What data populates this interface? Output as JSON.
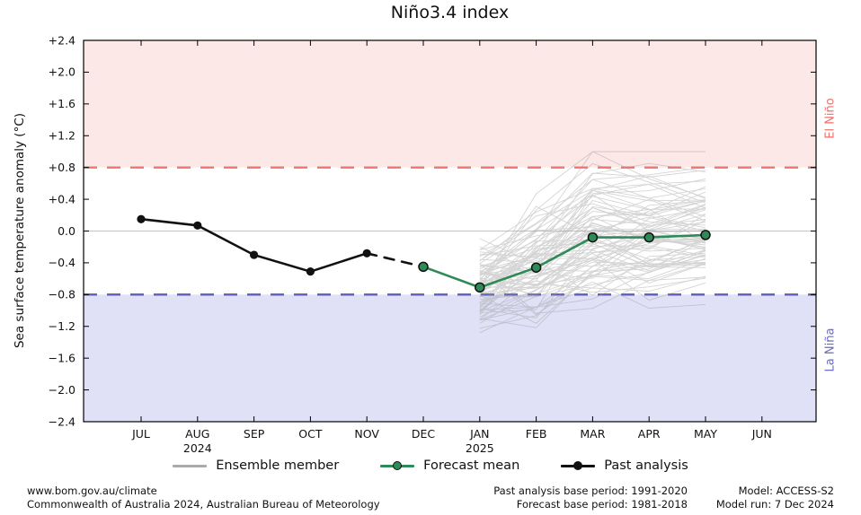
{
  "title": "Niño3.4 index",
  "y_axis_label": "Sea surface temperature anomaly (°C)",
  "region_labels": {
    "el_nino": "El Niño",
    "la_nina": "La Niña"
  },
  "legend": {
    "ensemble_label": "Ensemble member",
    "forecast_label": "Forecast mean",
    "past_label": "Past analysis"
  },
  "footer": {
    "left_line1": "www.bom.gov.au/climate",
    "left_line2": "Commonwealth of Australia 2024, Australian Bureau of Meteorology",
    "center_line1": "Past analysis base period: 1991-2020",
    "center_line2": "Forecast base period: 1981-2018",
    "right_line1": "Model: ACCESS-S2",
    "right_line2": "Model run: 7 Dec 2024"
  },
  "colors": {
    "el_nino_region": "#fce9e7",
    "la_nina_region": "#e0e0f6",
    "el_nino_line": "#f4726d",
    "la_nina_line": "#5c5cbe",
    "el_nino_text": "#ee6f6a",
    "la_nina_text": "#6a6ac4",
    "zero_line": "#c4c4c4",
    "past_line": "#111111",
    "forecast_line": "#2e8b57",
    "ensemble_line": "#9a9a9a",
    "axis": "#000000"
  },
  "chart_data": {
    "type": "line",
    "title": "Niño3.4 index",
    "ylabel": "Sea surface temperature anomaly (°C)",
    "ylim": [
      -2.4,
      2.4
    ],
    "y_tick_step": 0.4,
    "y_tick_labels": [
      "+2.4",
      "+2.0",
      "+1.6",
      "+1.2",
      "+0.8",
      "+0.4",
      "0.0",
      "−0.4",
      "−0.8",
      "−1.2",
      "−1.6",
      "−2.0",
      "−2.4"
    ],
    "y_tick_values": [
      2.4,
      2.0,
      1.6,
      1.2,
      0.8,
      0.4,
      0.0,
      -0.4,
      -0.8,
      -1.2,
      -1.6,
      -2.0,
      -2.4
    ],
    "x_tick_labels": [
      {
        "label": "JUL",
        "year": ""
      },
      {
        "label": "AUG",
        "year": "2024"
      },
      {
        "label": "SEP",
        "year": ""
      },
      {
        "label": "OCT",
        "year": ""
      },
      {
        "label": "NOV",
        "year": ""
      },
      {
        "label": "DEC",
        "year": ""
      },
      {
        "label": "JAN",
        "year": "2025"
      },
      {
        "label": "FEB",
        "year": ""
      },
      {
        "label": "MAR",
        "year": ""
      },
      {
        "label": "APR",
        "year": ""
      },
      {
        "label": "MAY",
        "year": ""
      },
      {
        "label": "JUN",
        "year": ""
      }
    ],
    "thresholds": {
      "el_nino": 0.8,
      "la_nina": -0.8,
      "zero": 0.0
    },
    "legend_position": "bottom",
    "grid": "zero-line-only",
    "series": [
      {
        "name": "Past analysis",
        "style": "solid",
        "month_index": [
          0,
          1,
          2,
          3,
          4
        ],
        "months": [
          "JUL",
          "AUG",
          "SEP",
          "OCT",
          "NOV"
        ],
        "values": [
          0.15,
          0.07,
          -0.3,
          -0.51,
          -0.28
        ]
      },
      {
        "name": "Past analysis (dashed link)",
        "style": "dashed",
        "month_index": [
          4,
          5
        ],
        "months": [
          "NOV",
          "DEC"
        ],
        "values": [
          -0.28,
          -0.45
        ]
      },
      {
        "name": "Forecast mean",
        "style": "solid",
        "month_index": [
          5,
          6,
          7,
          8,
          9,
          10
        ],
        "months": [
          "DEC",
          "JAN",
          "FEB",
          "MAR",
          "APR",
          "MAY"
        ],
        "values": [
          -0.45,
          -0.71,
          -0.46,
          -0.08,
          -0.08,
          -0.05
        ]
      }
    ],
    "ensemble": {
      "name": "Ensemble member",
      "month_index": [
        6,
        7,
        8,
        9,
        10
      ],
      "months": [
        "JAN",
        "FEB",
        "MAR",
        "APR",
        "MAY"
      ],
      "mean": [
        -0.71,
        -0.46,
        -0.08,
        -0.08,
        -0.05
      ],
      "count": 80,
      "seed": 11,
      "start_sigma": 0.25,
      "step_sigma": [
        0.32,
        0.3,
        0.2,
        0.17
      ],
      "persistence": 0.8,
      "clamp": [
        -1.68,
        1.0
      ]
    }
  }
}
